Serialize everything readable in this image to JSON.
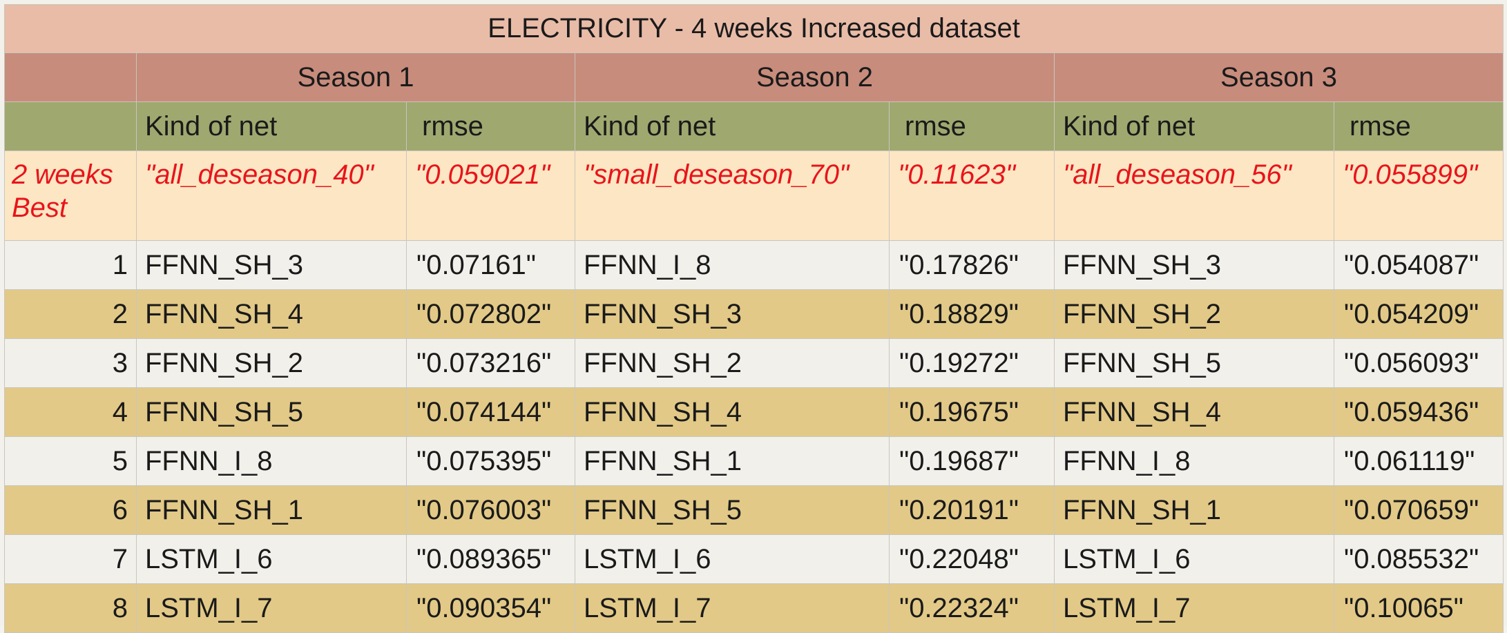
{
  "title": "ELECTRICITY - 4 weeks Increased dataset",
  "seasons": [
    "Season 1",
    "Season 2",
    "Season 3"
  ],
  "column_headers": {
    "kind_of_net": "Kind of net",
    "rmse": "rmse"
  },
  "best_row": {
    "label": "2 weeks Best",
    "cells": [
      "\"all_deseason_40\"",
      "\"0.059021\"",
      "\"small_deseason_70\"",
      "\"0.11623\"",
      "\"all_deseason_56\"",
      "\"0.055899\""
    ]
  },
  "rows": [
    {
      "rank": "1",
      "cells": [
        "FFNN_SH_3",
        "\"0.07161\"",
        "FFNN_I_8",
        "\"0.17826\"",
        "FFNN_SH_3",
        "\"0.054087\""
      ]
    },
    {
      "rank": "2",
      "cells": [
        "FFNN_SH_4",
        "\"0.072802\"",
        "FFNN_SH_3",
        "\"0.18829\"",
        "FFNN_SH_2",
        "\"0.054209\""
      ]
    },
    {
      "rank": "3",
      "cells": [
        "FFNN_SH_2",
        "\"0.073216\"",
        "FFNN_SH_2",
        "\"0.19272\"",
        "FFNN_SH_5",
        "\"0.056093\""
      ]
    },
    {
      "rank": "4",
      "cells": [
        "FFNN_SH_5",
        "\"0.074144\"",
        "FFNN_SH_4",
        "\"0.19675\"",
        "FFNN_SH_4",
        "\"0.059436\""
      ]
    },
    {
      "rank": "5",
      "cells": [
        "FFNN_I_8",
        "\"0.075395\"",
        "FFNN_SH_1",
        "\"0.19687\"",
        "FFNN_I_8",
        "\"0.061119\""
      ]
    },
    {
      "rank": "6",
      "cells": [
        "FFNN_SH_1",
        "\"0.076003\"",
        "FFNN_SH_5",
        "\"0.20191\"",
        "FFNN_SH_1",
        "\"0.070659\""
      ]
    },
    {
      "rank": "7",
      "cells": [
        "LSTM_I_6",
        "\"0.089365\"",
        "LSTM_I_6",
        "\"0.22048\"",
        "LSTM_I_6",
        "\"0.085532\""
      ]
    },
    {
      "rank": "8",
      "cells": [
        "LSTM_I_7",
        "\"0.090354\"",
        "LSTM_I_7",
        "\"0.22324\"",
        "LSTM_I_7",
        "\"0.10065\""
      ]
    }
  ],
  "colors": {
    "title_bg": "#e9bca8",
    "season_bg": "#c78c7c",
    "header_bg": "#9fa86f",
    "best_bg": "#fde6c3",
    "best_text": "#e8141b",
    "row_light": "#f1f0eb",
    "row_dark": "#e2c987"
  }
}
